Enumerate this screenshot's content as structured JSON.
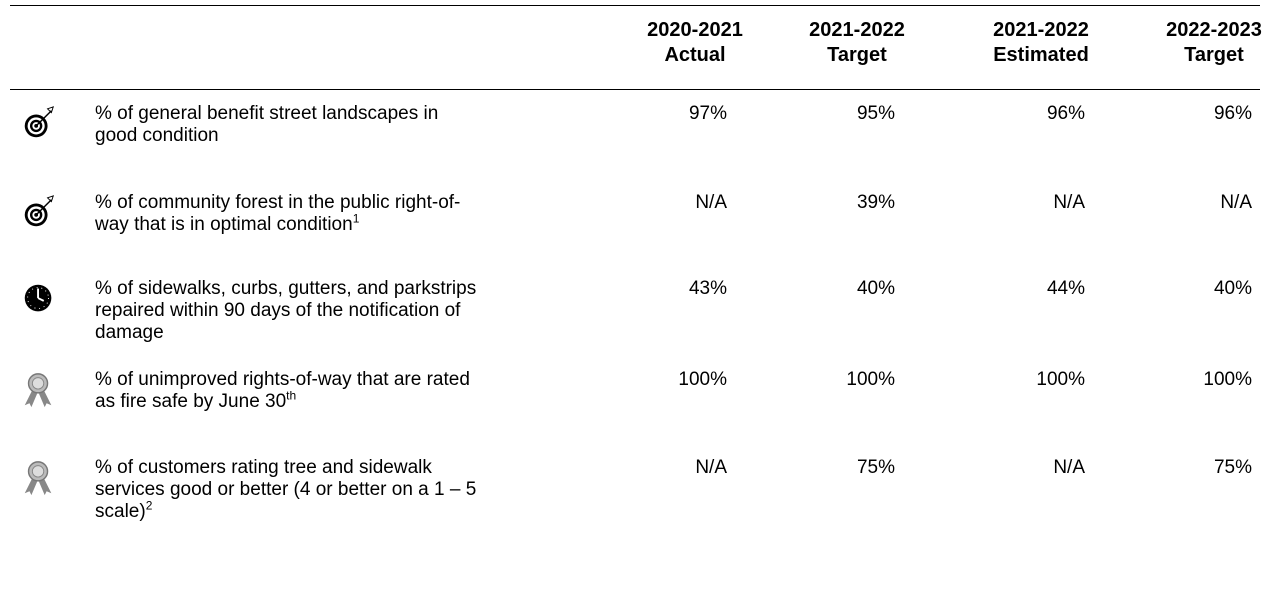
{
  "table": {
    "header": [
      [
        "2020-2021",
        "Actual"
      ],
      [
        "2021-2022",
        "Target"
      ],
      [
        "2021-2022",
        "Estimated"
      ],
      [
        "2022-2023",
        "Target"
      ]
    ],
    "rows": [
      {
        "description": [
          "% of general benefit street landscapes in",
          "good condition"
        ],
        "values": [
          "97%",
          "95%",
          "96%",
          "96%"
        ]
      },
      {
        "description": [
          "% of community forest in the public right-of-",
          "way that is in optimal condition"
        ],
        "sup": "1",
        "values": [
          "N/A",
          "39%",
          "N/A",
          "N/A"
        ]
      },
      {
        "description": [
          "% of sidewalks, curbs, gutters, and parkstrips",
          "repaired within 90 days of the notification of",
          "damage"
        ],
        "values": [
          "43%",
          "40%",
          "44%",
          "40%"
        ]
      },
      {
        "description": [
          "% of unimproved rights-of-way that are rated",
          "as fire safe by June 30"
        ],
        "sup": "th",
        "values": [
          "100%",
          "100%",
          "100%",
          "100%"
        ]
      },
      {
        "description": [
          "% of customers rating tree and sidewalk",
          "services good or better (4 or better on a 1 – 5",
          "scale)"
        ],
        "sup": "2",
        "values": [
          "N/A",
          "75%",
          "N/A",
          "75%"
        ]
      }
    ]
  }
}
